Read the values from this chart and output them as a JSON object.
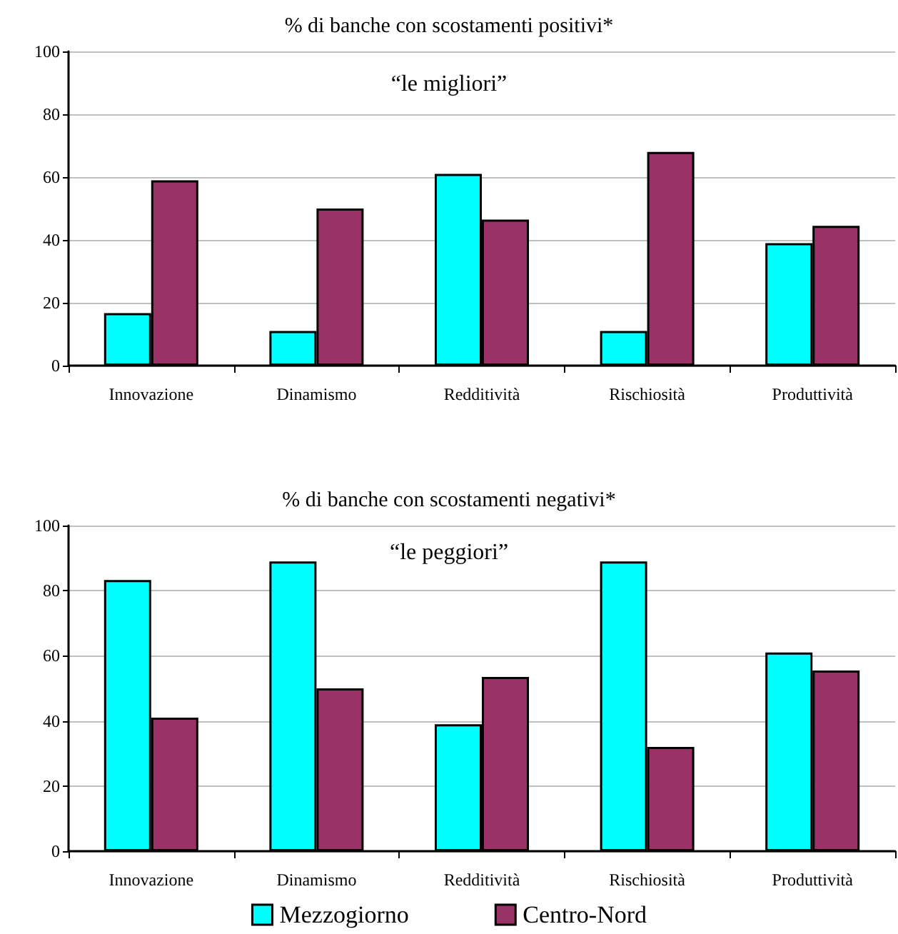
{
  "chart_data": [
    {
      "type": "bar",
      "title": "% di banche con scostamenti positivi*",
      "subtitle": "“le migliori”",
      "categories": [
        "Innovazione",
        "Dinamismo",
        "Redditività",
        "Rischiosità",
        "Produttività"
      ],
      "series": [
        {
          "color": "#00ffff",
          "values": [
            16.7,
            11,
            61,
            11,
            39
          ]
        },
        {
          "color": "#993366",
          "values": [
            59,
            50,
            46.5,
            68,
            44.5
          ]
        }
      ],
      "ylim": [
        0,
        100
      ],
      "yticks": [
        0,
        20,
        40,
        60,
        80,
        100
      ],
      "grid": "y",
      "legend": false
    },
    {
      "type": "bar",
      "title": "% di banche con scostamenti negativi*",
      "subtitle": "“le peggiori”",
      "categories": [
        "Innovazione",
        "Dinamismo",
        "Redditività",
        "Rischiosità",
        "Produttività"
      ],
      "series": [
        {
          "name": "Mezzogiorno",
          "color": "#00ffff",
          "values": [
            83.3,
            89,
            39,
            89,
            61
          ]
        },
        {
          "name": "Centro-Nord",
          "color": "#993366",
          "values": [
            41,
            50,
            53.5,
            32,
            55.5
          ]
        }
      ],
      "ylim": [
        0,
        100
      ],
      "yticks": [
        0,
        20,
        40,
        60,
        80,
        100
      ],
      "grid": "y",
      "legend": "bottom"
    }
  ]
}
